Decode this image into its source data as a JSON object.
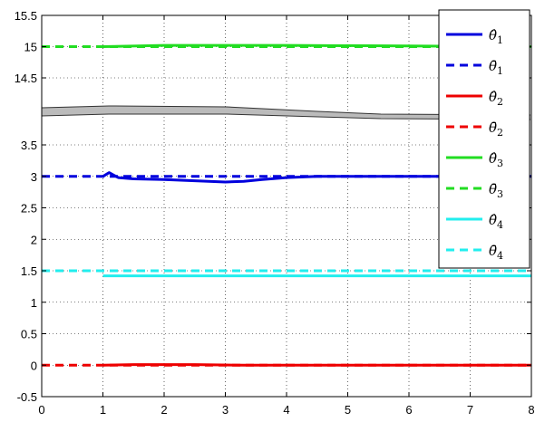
{
  "chart_data": {
    "type": "line",
    "xlim": [
      0,
      8
    ],
    "x_ticks": [
      "0",
      "1",
      "2",
      "3",
      "4",
      "5",
      "6",
      "7",
      "8"
    ],
    "y_ticks": [
      "-0.5",
      "0",
      "0.5",
      "1",
      "1.5",
      "2",
      "2.5",
      "3",
      "3.5",
      "14.5",
      "15",
      "15.5"
    ],
    "y_axis_break": {
      "lower_range": [
        -0.5,
        3.5
      ],
      "upper_range": [
        14.5,
        15.5
      ]
    },
    "grid": "dotted",
    "legend_position": "top-right",
    "colors": {
      "blue": "#0000dd",
      "red": "#ee0000",
      "green": "#22dd22",
      "cyan": "#22eeee",
      "gray_band": "#bbbbbb"
    },
    "series": [
      {
        "name": "θ̂₁",
        "legend_label": "θ̂",
        "legend_sub": "1",
        "style": "solid",
        "color": "#0000dd",
        "points": [
          [
            1.0,
            3.0
          ],
          [
            1.1,
            3.06
          ],
          [
            1.25,
            2.98
          ],
          [
            1.5,
            2.96
          ],
          [
            2.0,
            2.95
          ],
          [
            2.5,
            2.93
          ],
          [
            3.0,
            2.91
          ],
          [
            3.3,
            2.92
          ],
          [
            3.6,
            2.95
          ],
          [
            4.0,
            2.98
          ],
          [
            4.5,
            3.0
          ],
          [
            8.0,
            3.0
          ]
        ]
      },
      {
        "name": "θ̄₁",
        "legend_label": "θ̄",
        "legend_sub": "1",
        "style": "dashed",
        "color": "#0000dd",
        "points": [
          [
            0,
            3.0
          ],
          [
            8,
            3.0
          ]
        ]
      },
      {
        "name": "θ̂₂",
        "legend_label": "θ̂",
        "legend_sub": "2",
        "style": "solid",
        "color": "#ee0000",
        "points": [
          [
            1.0,
            0.0
          ],
          [
            1.5,
            0.01
          ],
          [
            2.5,
            0.01
          ],
          [
            3.3,
            0.0
          ],
          [
            8.0,
            0.0
          ]
        ]
      },
      {
        "name": "θ̄₂",
        "legend_label": "θ̄",
        "legend_sub": "2",
        "style": "dashed",
        "color": "#ee0000",
        "points": [
          [
            0,
            0.0
          ],
          [
            8,
            0.0
          ]
        ]
      },
      {
        "name": "θ̂₃",
        "legend_label": "θ̂",
        "legend_sub": "3",
        "style": "solid",
        "color": "#22dd22",
        "points": [
          [
            1.0,
            15.0
          ],
          [
            2.0,
            15.02
          ],
          [
            4.0,
            15.02
          ],
          [
            6.0,
            15.01
          ],
          [
            8.0,
            15.0
          ]
        ]
      },
      {
        "name": "θ̄₃",
        "legend_label": "θ̄",
        "legend_sub": "3",
        "style": "dashed",
        "color": "#22dd22",
        "points": [
          [
            0,
            15.0
          ],
          [
            8,
            15.0
          ]
        ]
      },
      {
        "name": "θ̂₄",
        "legend_label": "θ̂",
        "legend_sub": "4",
        "style": "solid",
        "color": "#22eeee",
        "points": [
          [
            1.0,
            1.42
          ],
          [
            8.0,
            1.42
          ]
        ]
      },
      {
        "name": "θ̄₄",
        "legend_label": "θ̄",
        "legend_sub": "4",
        "style": "dashed",
        "color": "#22eeee",
        "points": [
          [
            0,
            1.5
          ],
          [
            8,
            1.5
          ]
        ]
      }
    ]
  }
}
